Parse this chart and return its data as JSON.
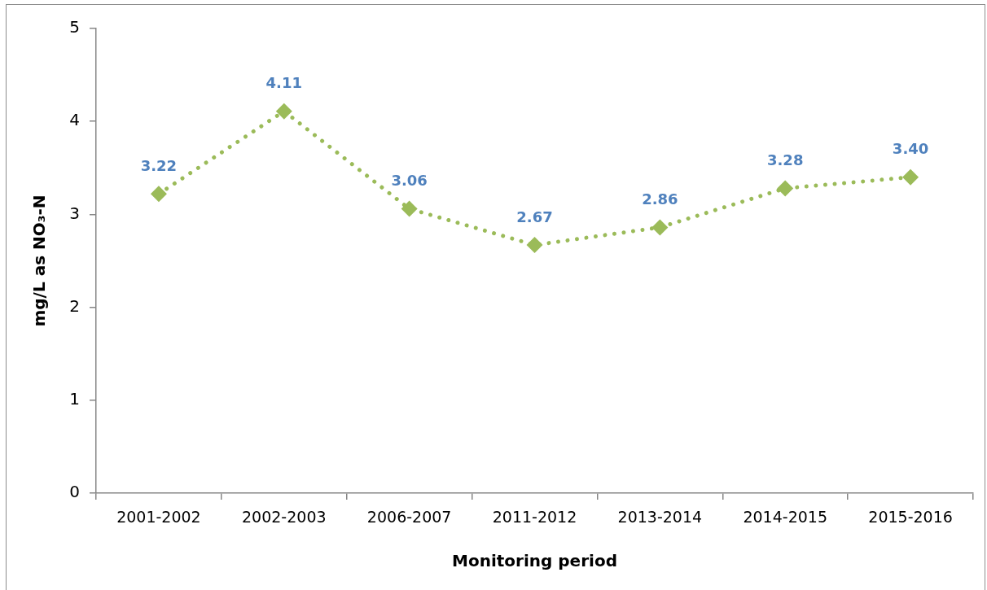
{
  "chart_data": {
    "type": "line",
    "xlabel": "Monitoring period",
    "ylabel": "mg/L as NO₃-N",
    "categories": [
      "2001-2002",
      "2002-2003",
      "2006-2007",
      "2011-2012",
      "2013-2014",
      "2014-2015",
      "2015-2016"
    ],
    "series": [
      {
        "color": "#9bbb59",
        "values": [
          3.22,
          4.11,
          3.06,
          2.67,
          2.86,
          3.28,
          3.4
        ],
        "value_labels": [
          "3.22",
          "4.11",
          "3.06",
          "2.67",
          "2.86",
          "3.28",
          "3.40"
        ]
      }
    ],
    "ylim": [
      0,
      5
    ],
    "yticks": [
      0,
      1,
      2,
      3,
      4,
      5
    ],
    "marker": "diamond",
    "line_style": "dotted"
  }
}
